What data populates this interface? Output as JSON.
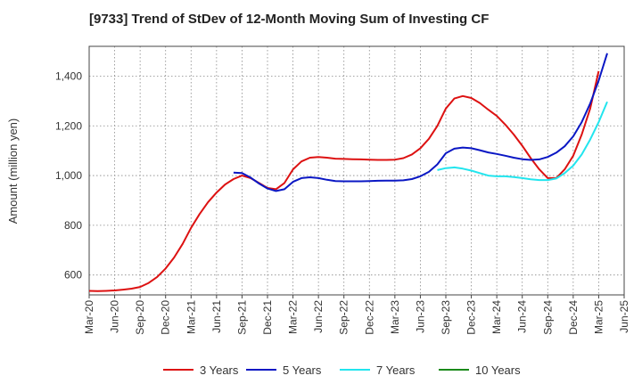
{
  "chart_data": {
    "type": "line",
    "title": "[9733]  Trend of StDev of 12-Month Moving Sum of Investing CF",
    "ylabel": "Amount (million yen)",
    "xlabel": "",
    "ylim": [
      520,
      1520
    ],
    "yticks": [
      600,
      800,
      1000,
      1200,
      1400
    ],
    "ytick_labels": [
      "600",
      "800",
      "1,000",
      "1,200",
      "1,400"
    ],
    "x_tick_labels": [
      "Mar-20",
      "Jun-20",
      "Sep-20",
      "Dec-20",
      "Mar-21",
      "Jun-21",
      "Sep-21",
      "Dec-21",
      "Mar-22",
      "Jun-22",
      "Sep-22",
      "Dec-22",
      "Mar-23",
      "Jun-23",
      "Sep-23",
      "Dec-23",
      "Mar-24",
      "Jun-24",
      "Sep-24",
      "Dec-24",
      "Mar-25",
      "Jun-25"
    ],
    "x_start": "Mar-20",
    "x_end": "Jun-25",
    "grid": true,
    "legend_position": "bottom",
    "series": [
      {
        "name": "3 Years",
        "color": "#dd1111",
        "points": [
          [
            "Mar-20",
            536
          ],
          [
            "Apr-20",
            535
          ],
          [
            "May-20",
            536
          ],
          [
            "Jun-20",
            538
          ],
          [
            "Jul-20",
            541
          ],
          [
            "Aug-20",
            545
          ],
          [
            "Sep-20",
            552
          ],
          [
            "Oct-20",
            568
          ],
          [
            "Nov-20",
            592
          ],
          [
            "Dec-20",
            626
          ],
          [
            "Jan-21",
            670
          ],
          [
            "Feb-21",
            725
          ],
          [
            "Mar-21",
            790
          ],
          [
            "Apr-21",
            845
          ],
          [
            "May-21",
            893
          ],
          [
            "Jun-21",
            932
          ],
          [
            "Jul-21",
            964
          ],
          [
            "Aug-21",
            986
          ],
          [
            "Sep-21",
            1000
          ],
          [
            "Oct-21",
            990
          ],
          [
            "Nov-21",
            970
          ],
          [
            "Dec-21",
            950
          ],
          [
            "Jan-22",
            945
          ],
          [
            "Feb-22",
            970
          ],
          [
            "Mar-22",
            1025
          ],
          [
            "Apr-22",
            1057
          ],
          [
            "May-22",
            1072
          ],
          [
            "Jun-22",
            1075
          ],
          [
            "Jul-22",
            1072
          ],
          [
            "Aug-22",
            1068
          ],
          [
            "Sep-22",
            1067
          ],
          [
            "Oct-22",
            1066
          ],
          [
            "Nov-22",
            1065
          ],
          [
            "Dec-22",
            1064
          ],
          [
            "Jan-23",
            1063
          ],
          [
            "Feb-23",
            1063
          ],
          [
            "Mar-23",
            1064
          ],
          [
            "Apr-23",
            1070
          ],
          [
            "May-23",
            1085
          ],
          [
            "Jun-23",
            1110
          ],
          [
            "Jul-23",
            1148
          ],
          [
            "Aug-23",
            1200
          ],
          [
            "Sep-23",
            1270
          ],
          [
            "Oct-23",
            1310
          ],
          [
            "Nov-23",
            1320
          ],
          [
            "Dec-23",
            1312
          ],
          [
            "Jan-24",
            1292
          ],
          [
            "Feb-24",
            1265
          ],
          [
            "Mar-24",
            1240
          ],
          [
            "Apr-24",
            1205
          ],
          [
            "May-24",
            1165
          ],
          [
            "Jun-24",
            1120
          ],
          [
            "Jul-24",
            1070
          ],
          [
            "Aug-24",
            1025
          ],
          [
            "Sep-24",
            990
          ],
          [
            "Oct-24",
            990
          ],
          [
            "Nov-24",
            1025
          ],
          [
            "Dec-24",
            1080
          ],
          [
            "Jan-25",
            1165
          ],
          [
            "Feb-25",
            1270
          ],
          [
            "Mar-25",
            1420
          ]
        ]
      },
      {
        "name": "5 Years",
        "color": "#0a17c4",
        "points": [
          [
            "Aug-21",
            1012
          ],
          [
            "Sep-21",
            1010
          ],
          [
            "Oct-21",
            992
          ],
          [
            "Nov-21",
            968
          ],
          [
            "Dec-21",
            948
          ],
          [
            "Jan-22",
            938
          ],
          [
            "Feb-22",
            945
          ],
          [
            "Mar-22",
            975
          ],
          [
            "Apr-22",
            990
          ],
          [
            "May-22",
            993
          ],
          [
            "Jun-22",
            990
          ],
          [
            "Jul-22",
            983
          ],
          [
            "Aug-22",
            978
          ],
          [
            "Sep-22",
            977
          ],
          [
            "Oct-22",
            977
          ],
          [
            "Nov-22",
            977
          ],
          [
            "Dec-22",
            978
          ],
          [
            "Jan-23",
            979
          ],
          [
            "Feb-23",
            980
          ],
          [
            "Mar-23",
            980
          ],
          [
            "Apr-23",
            981
          ],
          [
            "May-23",
            986
          ],
          [
            "Jun-23",
            997
          ],
          [
            "Jul-23",
            1015
          ],
          [
            "Aug-23",
            1045
          ],
          [
            "Sep-23",
            1090
          ],
          [
            "Oct-23",
            1108
          ],
          [
            "Nov-23",
            1113
          ],
          [
            "Dec-23",
            1110
          ],
          [
            "Jan-24",
            1102
          ],
          [
            "Feb-24",
            1093
          ],
          [
            "Mar-24",
            1087
          ],
          [
            "Apr-24",
            1080
          ],
          [
            "May-24",
            1072
          ],
          [
            "Jun-24",
            1066
          ],
          [
            "Jul-24",
            1063
          ],
          [
            "Aug-24",
            1065
          ],
          [
            "Sep-24",
            1075
          ],
          [
            "Oct-24",
            1092
          ],
          [
            "Nov-24",
            1118
          ],
          [
            "Dec-24",
            1158
          ],
          [
            "Jan-25",
            1215
          ],
          [
            "Feb-25",
            1290
          ],
          [
            "Mar-25",
            1382
          ],
          [
            "Apr-25",
            1492
          ]
        ]
      },
      {
        "name": "7 Years",
        "color": "#22e5ee",
        "points": [
          [
            "Aug-23",
            1022
          ],
          [
            "Sep-23",
            1030
          ],
          [
            "Oct-23",
            1033
          ],
          [
            "Nov-23",
            1028
          ],
          [
            "Dec-23",
            1020
          ],
          [
            "Jan-24",
            1010
          ],
          [
            "Feb-24",
            1000
          ],
          [
            "Mar-24",
            997
          ],
          [
            "Apr-24",
            997
          ],
          [
            "May-24",
            994
          ],
          [
            "Jun-24",
            990
          ],
          [
            "Jul-24",
            985
          ],
          [
            "Aug-24",
            982
          ],
          [
            "Sep-24",
            982
          ],
          [
            "Oct-24",
            988
          ],
          [
            "Nov-24",
            1010
          ],
          [
            "Dec-24",
            1040
          ],
          [
            "Jan-25",
            1085
          ],
          [
            "Feb-25",
            1145
          ],
          [
            "Mar-25",
            1215
          ],
          [
            "Apr-25",
            1297
          ]
        ]
      },
      {
        "name": "10 Years",
        "color": "#1a8a1a",
        "points": []
      }
    ]
  }
}
